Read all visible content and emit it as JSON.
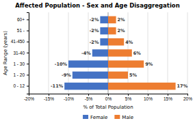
{
  "chart_data": {
    "type": "bar",
    "orientation": "horizontal",
    "title": "Affected Population - Sex and Age Disaggregation",
    "xlabel": "% of Total Population",
    "ylabel": "Age Range (years)",
    "categories": [
      "0 - 12",
      "1 - 20",
      "1 - 30",
      "31-40",
      "41-450",
      "51 -",
      "60+"
    ],
    "series": [
      {
        "name": "Female",
        "color": "#4472C4",
        "values": [
          -11.0,
          -9.0,
          -10.0,
          -4.0,
          -2.0,
          -2.0,
          -2.0
        ],
        "value_labels": [
          "-11%",
          "-9%",
          "-10%",
          "-4%",
          "-2%",
          "-2%",
          "-2%"
        ]
      },
      {
        "name": "Male",
        "color": "#ED7D31",
        "values": [
          17.0,
          5.0,
          9.0,
          6.0,
          4.0,
          2.0,
          2.0
        ],
        "value_labels": [
          "17%",
          "5%",
          "9%",
          "6%",
          "4%",
          "2%",
          "2%"
        ]
      }
    ],
    "xlim": [
      -20,
      20
    ],
    "xticks": [
      {
        "value": -20,
        "label": "-20%"
      },
      {
        "value": -15,
        "label": "-15%"
      },
      {
        "value": -10,
        "label": "-10%"
      },
      {
        "value": -5,
        "label": "-5%"
      },
      {
        "value": 0,
        "label": "0%"
      },
      {
        "value": 5,
        "label": "5%"
      },
      {
        "value": 10,
        "label": "10%"
      },
      {
        "value": 15,
        "label": "15%"
      },
      {
        "value": 20,
        "label": "20%"
      }
    ],
    "grid": true,
    "data_labels": true,
    "legend": "bottom"
  }
}
